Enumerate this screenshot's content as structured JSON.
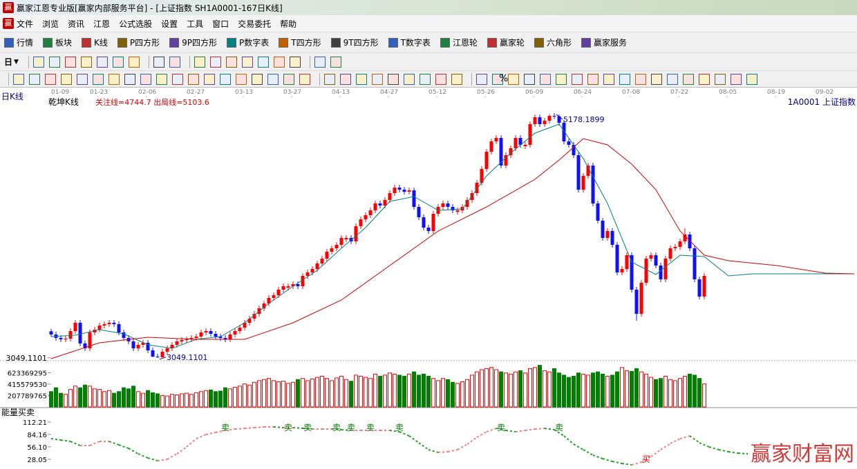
{
  "window": {
    "logo": "赢",
    "title": "赢家江恩专业版[赢家内部服务平台] - [上证指数  SH1A0001-167日K线]"
  },
  "menu": [
    "文件",
    "浏览",
    "资讯",
    "江恩",
    "公式选股",
    "设置",
    "工具",
    "窗口",
    "交易委托",
    "帮助"
  ],
  "toolbar": [
    "行情",
    "板块",
    "K线",
    "P四方形",
    "9P四方形",
    "P数字表",
    "T四方形",
    "9T四方形",
    "T数字表",
    "江恩轮",
    "赢家轮",
    "六角形",
    "赢家服务"
  ],
  "toolbar_period": "日",
  "toolbar_percent": "%",
  "watermark": "赢家财富网",
  "chart_data": {
    "type": "candlestick",
    "title": "日K线",
    "formula": "乾坤K线",
    "params": "关注线=4744.7 出局线=5103.6",
    "symbol": "1A0001  上证指数",
    "xlim": [
      0,
      166
    ],
    "dates": [
      {
        "x": 0,
        "label": "01-09"
      },
      {
        "x": 8,
        "label": "01-23"
      },
      {
        "x": 18,
        "label": "02-06"
      },
      {
        "x": 28,
        "label": "02-27"
      },
      {
        "x": 38,
        "label": "03-13"
      },
      {
        "x": 48,
        "label": "03-27"
      },
      {
        "x": 58,
        "label": "04-13"
      },
      {
        "x": 68,
        "label": "04-27"
      },
      {
        "x": 78,
        "label": "05-12"
      },
      {
        "x": 88,
        "label": "05-26"
      },
      {
        "x": 98,
        "label": "06-09"
      },
      {
        "x": 108,
        "label": "06-24"
      },
      {
        "x": 118,
        "label": "07-08"
      },
      {
        "x": 128,
        "label": "07-22"
      },
      {
        "x": 138,
        "label": "08-05"
      },
      {
        "x": 148,
        "label": "08-19"
      },
      {
        "x": 158,
        "label": "09-02"
      }
    ],
    "up_color": "#ff0000",
    "down_color": "#1010ff",
    "ylim": [
      3030,
      5274
    ],
    "yticks": [
      3049.1101
    ],
    "max_index": 104,
    "min_index": 22,
    "open": [
      3280,
      3252,
      3222,
      3210,
      3216,
      3282,
      3354,
      3174,
      3132,
      3270,
      3294,
      3330,
      3342,
      3354,
      3342,
      3270,
      3222,
      3192,
      3132,
      3162,
      3180,
      3114,
      3060,
      3054,
      3102,
      3132,
      3162,
      3192,
      3204,
      3210,
      3222,
      3234,
      3270,
      3282,
      3258,
      3234,
      3222,
      3210,
      3252,
      3282,
      3312,
      3354,
      3390,
      3432,
      3480,
      3522,
      3570,
      3594,
      3642,
      3660,
      3672,
      3690,
      3672,
      3762,
      3792,
      3822,
      3870,
      3912,
      3972,
      4002,
      4032,
      4080,
      4092,
      4062,
      4194,
      4254,
      4290,
      4332,
      4392,
      4374,
      4422,
      4482,
      4530,
      4512,
      4494,
      4506,
      4362,
      4272,
      4182,
      4152,
      4302,
      4362,
      4392,
      4362,
      4320,
      4332,
      4362,
      4422,
      4482,
      4572,
      4692,
      4842,
      4932,
      4962,
      4722,
      4812,
      4872,
      4962,
      4890,
      4902,
      5082,
      5142,
      5082,
      5112,
      5154,
      5150,
      5094,
      4932,
      4902,
      4812,
      4512,
      4632,
      4722,
      4392,
      4242,
      4092,
      4152,
      4032,
      3792,
      3822,
      3942,
      3642,
      3432,
      3702,
      3912,
      3942,
      3852,
      3732,
      3912,
      4002,
      4014,
      4062,
      4122,
      4002,
      3732,
      3582
    ],
    "close": [
      3252,
      3222,
      3210,
      3216,
      3282,
      3354,
      3174,
      3132,
      3270,
      3294,
      3330,
      3342,
      3354,
      3342,
      3270,
      3222,
      3192,
      3132,
      3162,
      3180,
      3114,
      3060,
      3054,
      3102,
      3132,
      3162,
      3192,
      3204,
      3210,
      3222,
      3234,
      3270,
      3282,
      3258,
      3234,
      3222,
      3210,
      3252,
      3282,
      3312,
      3354,
      3390,
      3432,
      3480,
      3522,
      3570,
      3594,
      3642,
      3672,
      3672,
      3690,
      3672,
      3762,
      3792,
      3822,
      3870,
      3912,
      3972,
      4002,
      4032,
      4092,
      4092,
      4062,
      4194,
      4254,
      4290,
      4332,
      4392,
      4374,
      4422,
      4482,
      4530,
      4512,
      4494,
      4506,
      4362,
      4272,
      4182,
      4152,
      4302,
      4362,
      4392,
      4362,
      4332,
      4332,
      4362,
      4422,
      4482,
      4572,
      4692,
      4842,
      4932,
      4962,
      4722,
      4812,
      4872,
      4962,
      4902,
      4902,
      5082,
      5142,
      5082,
      5112,
      5154,
      5150,
      5094,
      4932,
      4902,
      4812,
      4512,
      4632,
      4722,
      4392,
      4242,
      4092,
      4152,
      4032,
      3792,
      3822,
      3942,
      3642,
      3432,
      3702,
      3912,
      3942,
      3852,
      3732,
      3912,
      4002,
      4014,
      4062,
      4122,
      4002,
      3732,
      3582,
      3762
    ],
    "high": [
      3300,
      3276,
      3246,
      3240,
      3306,
      3378,
      3378,
      3198,
      3294,
      3318,
      3354,
      3366,
      3378,
      3378,
      3366,
      3294,
      3246,
      3216,
      3186,
      3204,
      3204,
      3138,
      3084,
      3126,
      3156,
      3186,
      3216,
      3228,
      3234,
      3246,
      3258,
      3294,
      3306,
      3306,
      3282,
      3258,
      3246,
      3276,
      3306,
      3336,
      3378,
      3414,
      3456,
      3504,
      3546,
      3594,
      3618,
      3666,
      3696,
      3696,
      3714,
      3714,
      3786,
      3816,
      3846,
      3894,
      3936,
      3996,
      4026,
      4056,
      4116,
      4116,
      4116,
      4218,
      4278,
      4314,
      4356,
      4416,
      4416,
      4446,
      4506,
      4554,
      4554,
      4536,
      4530,
      4530,
      4386,
      4296,
      4206,
      4326,
      4386,
      4416,
      4416,
      4386,
      4356,
      4386,
      4446,
      4506,
      4596,
      4716,
      4866,
      4956,
      4986,
      4986,
      4836,
      4896,
      4986,
      4986,
      4926,
      5106,
      5166,
      5166,
      5136,
      5170,
      5178.1899,
      5166,
      5118,
      4956,
      4926,
      4836,
      4656,
      4746,
      4746,
      4416,
      4266,
      4176,
      4176,
      4056,
      3846,
      3966,
      3966,
      3666,
      3726,
      3936,
      3966,
      3966,
      3876,
      3936,
      4026,
      4038,
      4086,
      4176,
      4146,
      4026,
      3756,
      3786
    ],
    "low": [
      3230,
      3198,
      3186,
      3186,
      3192,
      3258,
      3150,
      3108,
      3108,
      3246,
      3270,
      3306,
      3318,
      3318,
      3246,
      3198,
      3168,
      3108,
      3108,
      3138,
      3090,
      3054,
      3049.1101,
      3052,
      3078,
      3108,
      3138,
      3168,
      3180,
      3186,
      3198,
      3210,
      3246,
      3234,
      3210,
      3198,
      3186,
      3186,
      3228,
      3258,
      3288,
      3330,
      3366,
      3408,
      3456,
      3498,
      3546,
      3570,
      3618,
      3636,
      3648,
      3648,
      3648,
      3738,
      3768,
      3798,
      3846,
      3888,
      3948,
      3978,
      4008,
      4056,
      4038,
      4038,
      4170,
      4230,
      4266,
      4308,
      4350,
      4350,
      4398,
      4458,
      4488,
      4470,
      4470,
      4338,
      4248,
      4158,
      4128,
      4128,
      4278,
      4338,
      4338,
      4308,
      4296,
      4308,
      4338,
      4398,
      4458,
      4548,
      4668,
      4818,
      4908,
      4698,
      4698,
      4788,
      4848,
      4878,
      4866,
      4878,
      5058,
      5058,
      5058,
      5088,
      5126,
      5070,
      4908,
      4878,
      4788,
      4488,
      4488,
      4608,
      4368,
      4218,
      4068,
      4068,
      4008,
      3768,
      3768,
      3798,
      3618,
      3372,
      3408,
      3678,
      3888,
      3828,
      3708,
      3708,
      3888,
      3978,
      3990,
      4038,
      3978,
      3708,
      3558,
      3558
    ],
    "ma": [
      {
        "color": "#008080",
        "x": [
          0,
          5,
          10,
          15,
          20,
          25,
          30,
          35,
          40,
          45,
          50,
          55,
          60,
          65,
          70,
          75,
          80,
          85,
          90,
          95,
          100,
          105,
          110,
          115,
          120,
          125,
          130,
          135,
          140,
          145,
          166
        ],
        "values": [
          3234,
          3246,
          3294,
          3258,
          3162,
          3132,
          3210,
          3234,
          3354,
          3522,
          3672,
          3810,
          4002,
          4182,
          4410,
          4452,
          4332,
          4344,
          4632,
          4830,
          5004,
          5082,
          4782,
          4392,
          3882,
          3774,
          3942,
          3930,
          3762,
          3780,
          3780
        ]
      },
      {
        "color": "#d00000",
        "x": [
          0,
          10,
          20,
          30,
          40,
          50,
          60,
          70,
          80,
          90,
          100,
          105,
          110,
          115,
          120,
          125,
          130,
          135,
          140,
          150,
          160,
          166
        ],
        "values": [
          3042,
          3180,
          3228,
          3210,
          3210,
          3354,
          3552,
          3852,
          4152,
          4362,
          4602,
          4770,
          4956,
          4902,
          4734,
          4512,
          4152,
          3942,
          3894,
          3852,
          3786,
          3780
        ]
      }
    ],
    "volume": {
      "up_color": "#ff0000",
      "down_color": "#008000",
      "ylim": [
        0,
        856000000
      ],
      "yticks": [
        207789765,
        415579530,
        623369295
      ],
      "values": [
        280000000,
        350000000,
        250000000,
        230000000,
        320000000,
        380000000,
        350000000,
        400000000,
        380000000,
        330000000,
        320000000,
        280000000,
        300000000,
        250000000,
        280000000,
        350000000,
        330000000,
        380000000,
        280000000,
        250000000,
        300000000,
        260000000,
        240000000,
        210000000,
        200000000,
        230000000,
        220000000,
        240000000,
        250000000,
        230000000,
        260000000,
        280000000,
        300000000,
        310000000,
        280000000,
        290000000,
        350000000,
        330000000,
        360000000,
        380000000,
        420000000,
        400000000,
        450000000,
        480000000,
        500000000,
        520000000,
        480000000,
        460000000,
        470000000,
        430000000,
        450000000,
        500000000,
        520000000,
        480000000,
        510000000,
        540000000,
        560000000,
        520000000,
        480000000,
        530000000,
        560000000,
        500000000,
        470000000,
        580000000,
        560000000,
        540000000,
        520000000,
        600000000,
        560000000,
        580000000,
        620000000,
        600000000,
        580000000,
        560000000,
        600000000,
        640000000,
        580000000,
        600000000,
        560000000,
        520000000,
        480000000,
        520000000,
        500000000,
        450000000,
        430000000,
        460000000,
        500000000,
        580000000,
        640000000,
        680000000,
        700000000,
        720000000,
        680000000,
        640000000,
        620000000,
        600000000,
        640000000,
        660000000,
        620000000,
        700000000,
        720000000,
        760000000,
        660000000,
        640000000,
        700000000,
        620000000,
        580000000,
        540000000,
        560000000,
        620000000,
        600000000,
        580000000,
        620000000,
        640000000,
        600000000,
        560000000,
        580000000,
        640000000,
        720000000,
        660000000,
        650000000,
        700000000,
        640000000,
        600000000,
        540000000,
        500000000,
        520000000,
        560000000,
        500000000,
        480000000,
        520000000,
        560000000,
        600000000,
        580000000,
        520000000,
        420000000
      ]
    },
    "indicator": {
      "title": "能量买卖",
      "up_color": "#f08080",
      "down_color": "#20a020",
      "ylim": [
        6,
        126
      ],
      "yticks": [
        28.05,
        {
          "value": 56.1,
          "label": "56.10"
        },
        84.16,
        112.21
      ],
      "x": [
        0,
        2,
        4,
        6,
        8,
        10,
        12,
        14,
        16,
        18,
        20,
        22,
        24,
        26,
        28,
        30,
        32,
        34,
        36,
        38,
        40,
        42,
        44,
        46,
        48,
        50,
        52,
        54,
        56,
        58,
        60,
        62,
        64,
        66,
        68,
        70,
        72,
        74,
        76,
        78,
        80,
        82,
        84,
        86,
        88,
        90,
        92,
        94,
        96,
        98,
        100,
        102,
        104,
        106,
        108,
        110,
        112,
        114,
        116,
        118,
        120,
        122,
        124,
        126,
        128,
        130,
        132,
        134,
        136,
        138,
        140,
        142,
        144
      ],
      "values": [
        74.5,
        71.4,
        68.3,
        59.0,
        59.0,
        68.3,
        68.3,
        60.5,
        52.7,
        40.3,
        30.9,
        24.7,
        27.8,
        40.3,
        55.8,
        74.5,
        83.9,
        88.6,
        93.2,
        96.3,
        97.9,
        99.5,
        101.0,
        101.0,
        99.5,
        99.5,
        97.9,
        96.3,
        96.3,
        96.3,
        94.8,
        93.2,
        93.2,
        93.2,
        93.2,
        93.2,
        90.1,
        80.8,
        65.2,
        49.6,
        43.4,
        44.9,
        49.6,
        62.1,
        77.7,
        90.1,
        97.9,
        93.2,
        90.1,
        93.2,
        96.3,
        97.9,
        94.8,
        80.8,
        62.1,
        49.6,
        37.2,
        29.4,
        23.1,
        18.5,
        15.3,
        21.6,
        34.0,
        49.6,
        63.6,
        74.5,
        80.8,
        65.2,
        55.8,
        49.6,
        44.9,
        41.8,
        40.3
      ],
      "signals": [
        {
          "text": "卖",
          "x": 36,
          "value": 101
        },
        {
          "text": "卖",
          "x": 49,
          "value": 101
        },
        {
          "text": "卖",
          "x": 53,
          "value": 101
        },
        {
          "text": "卖",
          "x": 59,
          "value": 101
        },
        {
          "text": "卖",
          "x": 62,
          "value": 101
        },
        {
          "text": "卖",
          "x": 66,
          "value": 101
        },
        {
          "text": "卖",
          "x": 72,
          "value": 101
        },
        {
          "text": "卖",
          "x": 93,
          "value": 101
        },
        {
          "text": "卖",
          "x": 105,
          "value": 101
        },
        {
          "text": "买",
          "x": 123,
          "value": 29.4
        }
      ],
      "signal_colors": {
        "卖": "#008000",
        "买": "#e00000"
      }
    }
  }
}
